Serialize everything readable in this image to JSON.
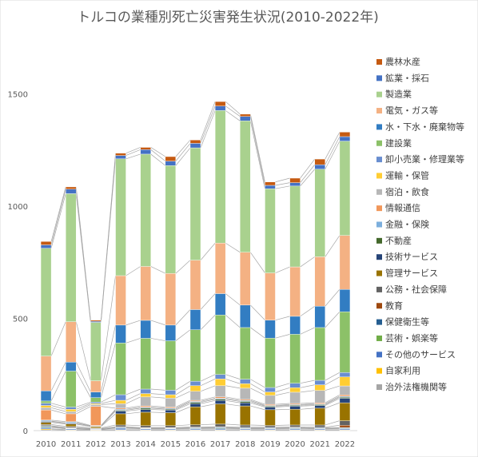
{
  "chart_data": {
    "type": "bar",
    "stacked": true,
    "title": "トルコの業種別死亡災害発生状況(2010-2022年)",
    "xlabel": "",
    "ylabel": "",
    "ylim": [
      0,
      1750
    ],
    "yticks": [
      0,
      500,
      1000,
      1500
    ],
    "grid": false,
    "legend_position": "right",
    "categories": [
      "2010",
      "2011",
      "2012",
      "2013",
      "2014",
      "2015",
      "2016",
      "2017",
      "2018",
      "2019",
      "2020",
      "2021",
      "2022"
    ],
    "series": [
      {
        "name": "治外法権機関等",
        "color": "#a5a5a5",
        "values": [
          4,
          2,
          2,
          2,
          2,
          2,
          2,
          2,
          2,
          2,
          2,
          2,
          2
        ]
      },
      {
        "name": "自家利用",
        "color": "#ffc000",
        "values": [
          4,
          2,
          2,
          2,
          2,
          2,
          2,
          2,
          2,
          2,
          2,
          2,
          2
        ]
      },
      {
        "name": "その他のサービス",
        "color": "#4472c4",
        "values": [
          6,
          4,
          2,
          6,
          4,
          4,
          5,
          5,
          4,
          4,
          5,
          4,
          5
        ]
      },
      {
        "name": "芸術・娯楽等",
        "color": "#70ad47",
        "values": [
          3,
          2,
          1,
          2,
          2,
          2,
          2,
          3,
          2,
          2,
          2,
          2,
          2
        ]
      },
      {
        "name": "保健衛生等",
        "color": "#255e91",
        "values": [
          3,
          2,
          1,
          3,
          2,
          2,
          3,
          3,
          3,
          3,
          3,
          3,
          3
        ]
      },
      {
        "name": "教育",
        "color": "#9e480e",
        "values": [
          2,
          2,
          1,
          2,
          2,
          2,
          2,
          2,
          2,
          2,
          2,
          2,
          10
        ]
      },
      {
        "name": "公務・社会保障",
        "color": "#636363",
        "values": [
          5,
          5,
          3,
          8,
          8,
          8,
          10,
          12,
          10,
          8,
          9,
          10,
          20
        ]
      },
      {
        "name": "管理サービス",
        "color": "#997300",
        "values": [
          10,
          10,
          6,
          50,
          60,
          58,
          80,
          90,
          85,
          70,
          70,
          75,
          80
        ]
      },
      {
        "name": "技術サービス",
        "color": "#264478",
        "values": [
          4,
          4,
          2,
          12,
          12,
          12,
          14,
          15,
          14,
          12,
          14,
          12,
          20
        ]
      },
      {
        "name": "不動産",
        "color": "#43682b",
        "values": [
          2,
          2,
          1,
          4,
          6,
          4,
          6,
          6,
          6,
          4,
          4,
          4,
          5
        ]
      },
      {
        "name": "金融・保険",
        "color": "#7cafdd",
        "values": [
          4,
          5,
          2,
          4,
          4,
          4,
          4,
          4,
          4,
          3,
          3,
          3,
          4
        ]
      },
      {
        "name": "情報通信",
        "color": "#f1975a",
        "values": [
          45,
          35,
          85,
          5,
          6,
          5,
          5,
          6,
          5,
          5,
          5,
          5,
          6
        ]
      },
      {
        "name": "宿泊・飲食",
        "color": "#b7b7b7",
        "values": [
          10,
          10,
          8,
          20,
          40,
          40,
          40,
          50,
          50,
          40,
          50,
          55,
          40
        ]
      },
      {
        "name": "運輸・保管",
        "color": "#ffcd33",
        "values": [
          10,
          10,
          5,
          15,
          15,
          15,
          25,
          30,
          20,
          15,
          20,
          25,
          40
        ]
      },
      {
        "name": "卸小売業・修理業等",
        "color": "#698ed0",
        "values": [
          10,
          10,
          6,
          25,
          20,
          20,
          20,
          20,
          20,
          20,
          20,
          20,
          20
        ]
      },
      {
        "name": "建設業",
        "color": "#8cc168",
        "values": [
          10,
          160,
          20,
          230,
          226,
          220,
          229,
          265,
          230,
          220,
          218,
          235,
          270
        ]
      },
      {
        "name": "水・下水・廃棄物等",
        "color": "#327dc2",
        "values": [
          45,
          40,
          25,
          80,
          80,
          70,
          90,
          95,
          100,
          80,
          80,
          95,
          100
        ]
      },
      {
        "name": "電気・ガス等",
        "color": "#f4b183",
        "values": [
          155,
          180,
          50,
          220,
          240,
          230,
          220,
          225,
          235,
          210,
          220,
          220,
          240
        ]
      },
      {
        "name": "製造業",
        "color": "#a9d18e",
        "values": [
          480,
          570,
          260,
          520,
          500,
          480,
          500,
          590,
          585,
          375,
          360,
          390,
          420
        ]
      },
      {
        "name": "鉱業・採石",
        "color": "#4472c4",
        "values": [
          15,
          20,
          5,
          15,
          20,
          20,
          20,
          20,
          20,
          15,
          15,
          20,
          20
        ]
      },
      {
        "name": "農林水産",
        "color": "#c55a11",
        "values": [
          15,
          10,
          5,
          10,
          10,
          20,
          15,
          20,
          10,
          15,
          20,
          25,
          20
        ]
      }
    ]
  }
}
